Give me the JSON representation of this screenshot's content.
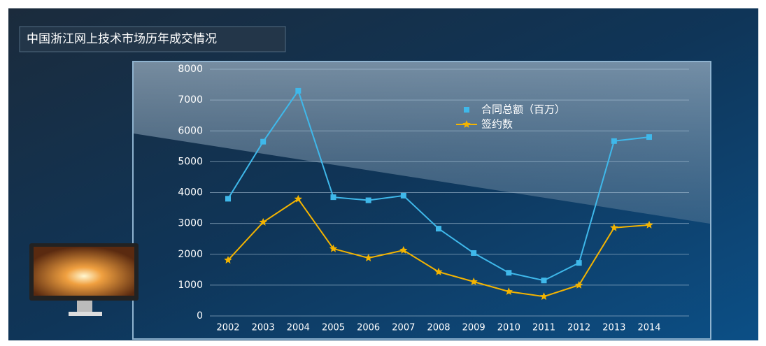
{
  "chart_data": {
    "type": "line",
    "title": "中国浙江网上技术市场历年成交情况",
    "categories": [
      "2002",
      "2003",
      "2004",
      "2005",
      "2006",
      "2007",
      "2008",
      "2009",
      "2010",
      "2011",
      "2012",
      "2013",
      "2014"
    ],
    "series": [
      {
        "name": "合同总额（百万）",
        "color": "#3fb8ea",
        "marker": "square",
        "values": [
          3800,
          5650,
          7300,
          3850,
          3750,
          3900,
          2830,
          2040,
          1400,
          1150,
          1720,
          5670,
          5800
        ]
      },
      {
        "name": "签约数",
        "color": "#f4b400",
        "marker": "star",
        "values": [
          1810,
          3040,
          3790,
          2180,
          1880,
          2130,
          1430,
          1110,
          790,
          630,
          1000,
          2860,
          2950
        ]
      }
    ],
    "ylim": [
      0,
      8000
    ],
    "yticks": [
      0,
      1000,
      2000,
      3000,
      4000,
      5000,
      6000,
      7000,
      8000
    ],
    "grid": true
  }
}
